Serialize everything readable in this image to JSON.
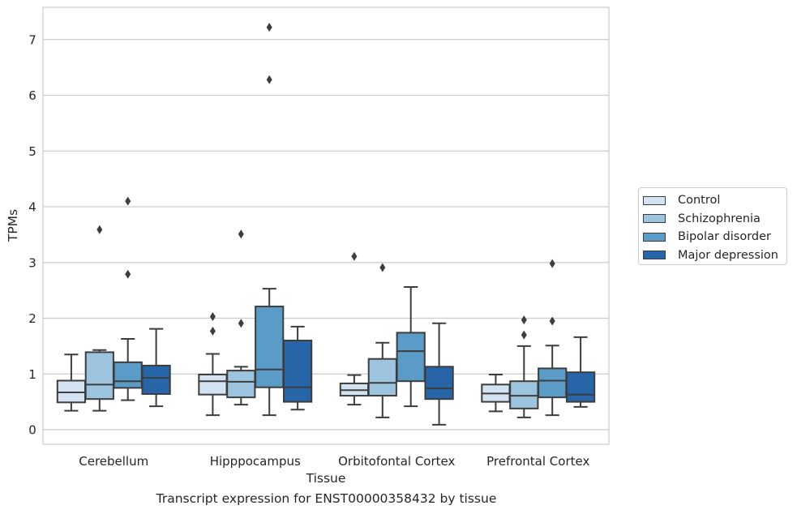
{
  "caption": "Transcript expression for ENST00000358432 by tissue",
  "chart_data": {
    "type": "box",
    "xlabel": "Tissue",
    "ylabel": "TPMs",
    "ylim": [
      -0.25,
      7.6
    ],
    "yticks": [
      0,
      1,
      2,
      3,
      4,
      5,
      6,
      7
    ],
    "grid": "horizontal",
    "legend_position": "right",
    "categories": [
      "Cerebellum",
      "Hipppocampus",
      "Orbitofontal Cortex",
      "Prefrontal Cortex"
    ],
    "series": [
      {
        "name": "Control",
        "color": "#d3e3f2",
        "boxes": [
          {
            "whislo": 0.34,
            "q1": 0.49,
            "med": 0.67,
            "q3": 0.88,
            "whishi": 1.35,
            "fliers": []
          },
          {
            "whislo": 0.26,
            "q1": 0.63,
            "med": 0.87,
            "q3": 0.99,
            "whishi": 1.36,
            "fliers": [
              2.03,
              1.77
            ]
          },
          {
            "whislo": 0.45,
            "q1": 0.61,
            "med": 0.71,
            "q3": 0.83,
            "whishi": 0.98,
            "fliers": [
              3.11
            ]
          },
          {
            "whislo": 0.33,
            "q1": 0.5,
            "med": 0.65,
            "q3": 0.81,
            "whishi": 0.99,
            "fliers": []
          }
        ]
      },
      {
        "name": "Schizophrenia",
        "color": "#9dc4de",
        "boxes": [
          {
            "whislo": 0.34,
            "q1": 0.55,
            "med": 0.81,
            "q3": 1.39,
            "whishi": 1.43,
            "fliers": [
              3.59
            ]
          },
          {
            "whislo": 0.45,
            "q1": 0.58,
            "med": 0.86,
            "q3": 1.06,
            "whishi": 1.13,
            "fliers": [
              1.91,
              3.51
            ]
          },
          {
            "whislo": 0.22,
            "q1": 0.61,
            "med": 0.84,
            "q3": 1.27,
            "whishi": 1.56,
            "fliers": [
              2.91
            ]
          },
          {
            "whislo": 0.22,
            "q1": 0.38,
            "med": 0.61,
            "q3": 0.87,
            "whishi": 1.5,
            "fliers": [
              1.97,
              1.7
            ]
          }
        ]
      },
      {
        "name": "Bipolar disorder",
        "color": "#5a9bc8",
        "boxes": [
          {
            "whislo": 0.53,
            "q1": 0.75,
            "med": 0.87,
            "q3": 1.21,
            "whishi": 1.63,
            "fliers": [
              4.1,
              2.79
            ]
          },
          {
            "whislo": 0.26,
            "q1": 0.76,
            "med": 1.08,
            "q3": 2.21,
            "whishi": 2.53,
            "fliers": [
              7.22,
              6.28
            ]
          },
          {
            "whislo": 0.42,
            "q1": 0.87,
            "med": 1.41,
            "q3": 1.74,
            "whishi": 2.56,
            "fliers": []
          },
          {
            "whislo": 0.26,
            "q1": 0.58,
            "med": 0.88,
            "q3": 1.1,
            "whishi": 1.51,
            "fliers": [
              2.98,
              1.95
            ]
          }
        ]
      },
      {
        "name": "Major depression",
        "color": "#2666a8",
        "boxes": [
          {
            "whislo": 0.42,
            "q1": 0.64,
            "med": 0.93,
            "q3": 1.15,
            "whishi": 1.81,
            "fliers": []
          },
          {
            "whislo": 0.36,
            "q1": 0.5,
            "med": 0.76,
            "q3": 1.6,
            "whishi": 1.85,
            "fliers": []
          },
          {
            "whislo": 0.09,
            "q1": 0.55,
            "med": 0.74,
            "q3": 1.13,
            "whishi": 1.91,
            "fliers": []
          },
          {
            "whislo": 0.41,
            "q1": 0.5,
            "med": 0.63,
            "q3": 1.03,
            "whishi": 1.66,
            "fliers": []
          }
        ]
      }
    ]
  }
}
